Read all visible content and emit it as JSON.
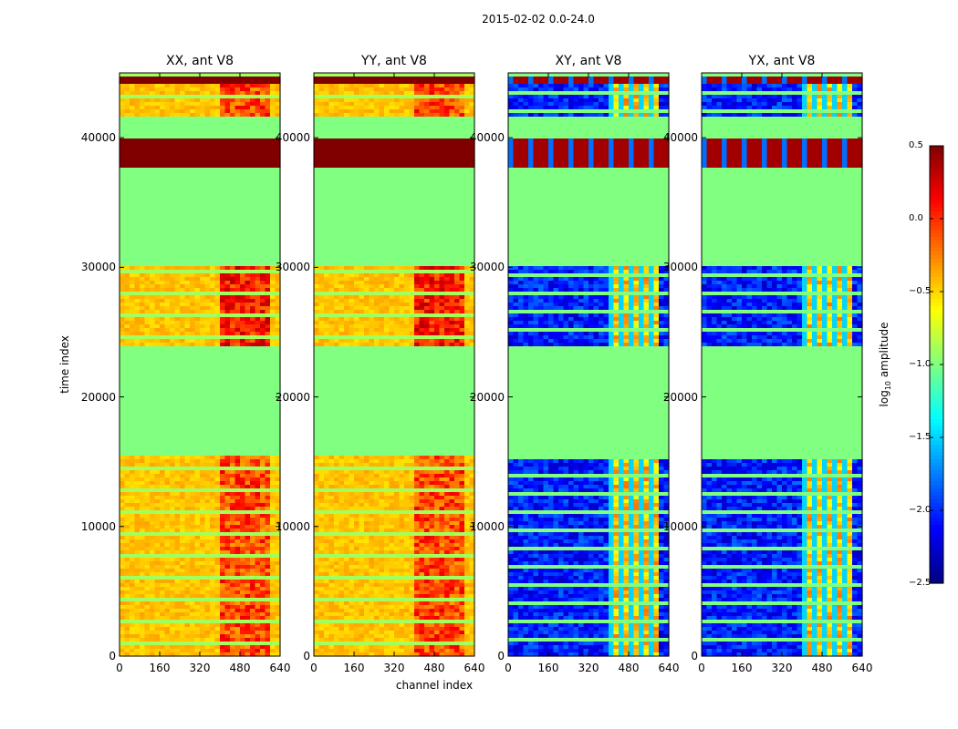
{
  "chart_data": {
    "type": "heatmap",
    "suptitle": "2015-02-02 0.0-24.0",
    "panels": [
      {
        "title": "XX, ant V8",
        "pol": "XX",
        "base": 0.5
      },
      {
        "title": "YY, ant V8",
        "pol": "YY",
        "base": 0.5
      },
      {
        "title": "XY, ant V8",
        "pol": "XY",
        "base": -2.0
      },
      {
        "title": "YX, ant V8",
        "pol": "YX",
        "base": -2.0
      }
    ],
    "xlabel": "channel index",
    "ylabel": "time index",
    "xlim": [
      0,
      640
    ],
    "ylim": [
      0,
      45000
    ],
    "xticks": [
      "0",
      "160",
      "320",
      "480",
      "640"
    ],
    "yticks": [
      "0",
      "10000",
      "20000",
      "30000",
      "40000"
    ],
    "xtick_values": [
      0,
      160,
      320,
      480,
      640
    ],
    "ytick_values": [
      0,
      10000,
      20000,
      30000,
      40000
    ],
    "colorbar": {
      "label_prefix": "log",
      "label_sub": "10",
      "label_suffix": " amplitude",
      "range": [
        -2.5,
        0.5
      ],
      "ticks": [
        "0.5",
        "0.0",
        "−0.5",
        "−1.0",
        "−1.5",
        "−2.0",
        "−2.5"
      ],
      "tick_values": [
        0.5,
        0.0,
        -0.5,
        -1.0,
        -1.5,
        -2.0,
        -2.5
      ],
      "colormap": "jet"
    },
    "masked_value": -1.0,
    "masked_time_ranges": [
      [
        15500,
        23800
      ],
      [
        30200,
        37700
      ],
      [
        39900,
        41500
      ]
    ],
    "bright_time_ranges": [
      [
        37800,
        39900
      ],
      [
        44200,
        44600
      ]
    ],
    "bright_channel_range": [
      400,
      600
    ]
  }
}
